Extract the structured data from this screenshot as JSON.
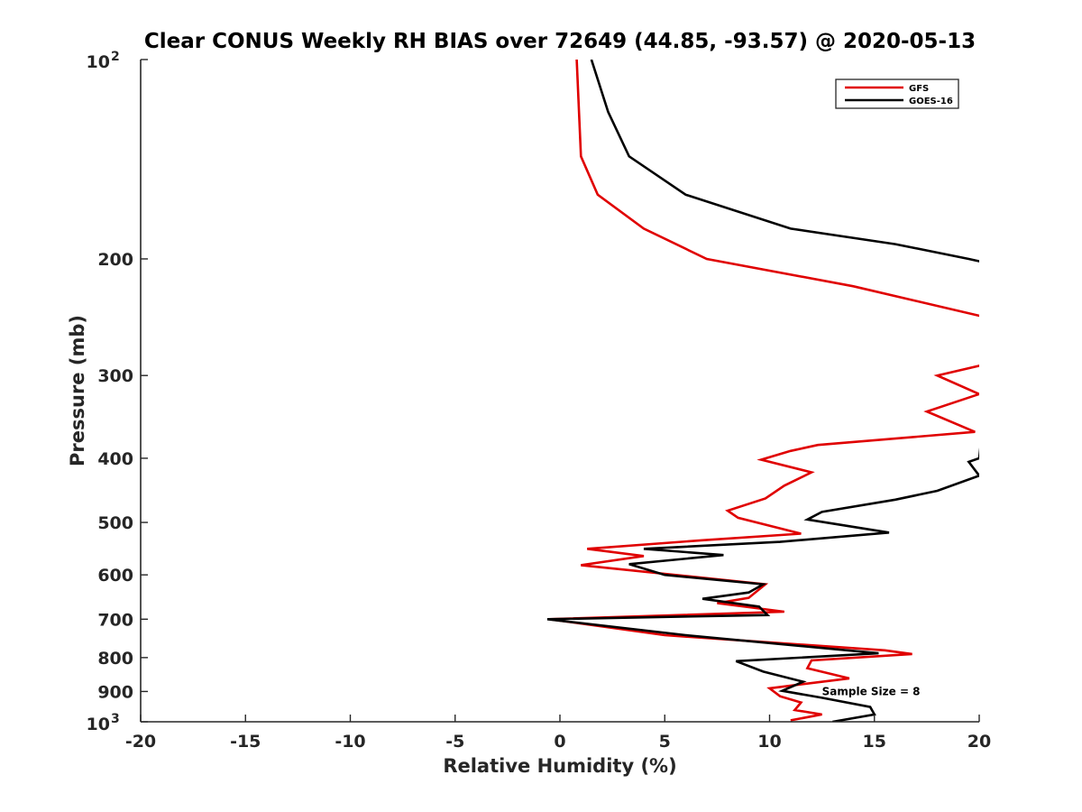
{
  "chart_data": {
    "type": "line",
    "title": "Clear CONUS Weekly RH BIAS over 72649 (44.85, -93.57) @ 2020-05-13",
    "xlabel": "Relative Humidity (%)",
    "ylabel": "Pressure (mb)",
    "xlim": [
      -20,
      20
    ],
    "ylim": [
      1000,
      100
    ],
    "y_scale": "log",
    "y_reversed": true,
    "grid": false,
    "legend_position": "top-right",
    "x_ticks": [
      "-20",
      "-15",
      "-10",
      "-5",
      "0",
      "5",
      "10",
      "15",
      "20"
    ],
    "y_ticks": [
      {
        "value": 100,
        "label": "10",
        "sup": "2"
      },
      {
        "value": 200,
        "label": "200",
        "sup": ""
      },
      {
        "value": 300,
        "label": "300",
        "sup": ""
      },
      {
        "value": 400,
        "label": "400",
        "sup": ""
      },
      {
        "value": 500,
        "label": "500",
        "sup": ""
      },
      {
        "value": 600,
        "label": "600",
        "sup": ""
      },
      {
        "value": 700,
        "label": "700",
        "sup": ""
      },
      {
        "value": 800,
        "label": "800",
        "sup": ""
      },
      {
        "value": 900,
        "label": "900",
        "sup": ""
      },
      {
        "value": 1000,
        "label": "10",
        "sup": "3"
      }
    ],
    "series": [
      {
        "name": "GFS",
        "color": "#e00000",
        "points": [
          [
            0.8,
            100
          ],
          [
            1.0,
            140
          ],
          [
            1.8,
            160
          ],
          [
            4.0,
            180
          ],
          [
            7.0,
            200
          ],
          [
            14.0,
            220
          ],
          [
            21.5,
            250
          ],
          [
            28.0,
            275
          ],
          [
            20.0,
            290
          ],
          [
            18.0,
            300
          ],
          [
            20.0,
            320
          ],
          [
            17.5,
            340
          ],
          [
            19.8,
            365
          ],
          [
            12.3,
            382
          ],
          [
            11.0,
            390
          ],
          [
            9.6,
            402
          ],
          [
            12.0,
            420
          ],
          [
            10.7,
            440
          ],
          [
            9.8,
            460
          ],
          [
            8.0,
            480
          ],
          [
            8.5,
            492
          ],
          [
            11.5,
            520
          ],
          [
            6.8,
            532
          ],
          [
            1.3,
            548
          ],
          [
            4.0,
            562
          ],
          [
            1.0,
            580
          ],
          [
            9.8,
            620
          ],
          [
            9.0,
            650
          ],
          [
            7.5,
            662
          ],
          [
            10.7,
            682
          ],
          [
            -0.5,
            700
          ],
          [
            5.0,
            740
          ],
          [
            15.5,
            780
          ],
          [
            16.8,
            790
          ],
          [
            12.0,
            808
          ],
          [
            11.8,
            830
          ],
          [
            13.8,
            860
          ],
          [
            10.0,
            890
          ],
          [
            10.5,
            915
          ],
          [
            11.5,
            935
          ],
          [
            11.2,
            960
          ],
          [
            12.5,
            975
          ],
          [
            11.0,
            995
          ]
        ]
      },
      {
        "name": "GOES-16",
        "color": "#000000",
        "points": [
          [
            1.5,
            100
          ],
          [
            2.3,
            120
          ],
          [
            3.3,
            140
          ],
          [
            6.0,
            160
          ],
          [
            11.0,
            180
          ],
          [
            16.0,
            190
          ],
          [
            19.5,
            200
          ],
          [
            21.0,
            205
          ],
          [
            20.0,
            400
          ],
          [
            19.5,
            405
          ],
          [
            20.0,
            425
          ],
          [
            18.0,
            448
          ],
          [
            16.0,
            462
          ],
          [
            12.5,
            482
          ],
          [
            11.8,
            495
          ],
          [
            15.7,
            518
          ],
          [
            10.5,
            535
          ],
          [
            4.0,
            548
          ],
          [
            7.8,
            560
          ],
          [
            3.3,
            578
          ],
          [
            5.0,
            600
          ],
          [
            9.7,
            620
          ],
          [
            9.0,
            638
          ],
          [
            6.8,
            652
          ],
          [
            9.5,
            670
          ],
          [
            9.9,
            690
          ],
          [
            -0.6,
            700
          ],
          [
            6.0,
            740
          ],
          [
            15.2,
            788
          ],
          [
            8.4,
            810
          ],
          [
            9.7,
            840
          ],
          [
            11.6,
            870
          ],
          [
            10.6,
            898
          ],
          [
            12.5,
            920
          ],
          [
            14.8,
            950
          ],
          [
            15.0,
            975
          ],
          [
            13.0,
            1000
          ]
        ]
      }
    ],
    "annotations": [
      {
        "text": "Sample Size = 8",
        "x": 12.5,
        "y": 900
      }
    ]
  }
}
